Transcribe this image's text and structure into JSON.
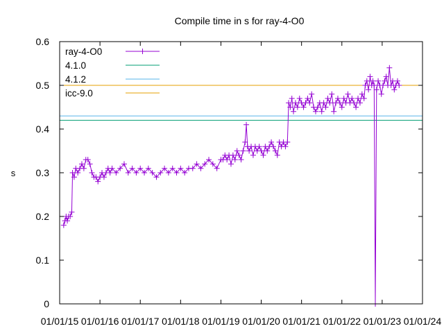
{
  "chart_data": {
    "type": "line",
    "title": "Compile time in s for ray-4-O0",
    "xlabel": "",
    "ylabel": "s",
    "x_ticks": [
      "01/01/15",
      "01/01/16",
      "01/01/17",
      "01/01/18",
      "01/01/19",
      "01/01/20",
      "01/01/21",
      "01/01/22",
      "01/01/23",
      "01/01/24"
    ],
    "y_ticks": [
      "0",
      "0.1",
      "0.2",
      "0.3",
      "0.4",
      "0.5",
      "0.6"
    ],
    "xlim_years": [
      2015.0,
      2024.0
    ],
    "ylim": [
      0,
      0.6
    ],
    "grid": false,
    "legend_position": "top-left",
    "series": [
      {
        "name": "ray-4-O0",
        "style": "linespoints",
        "color": "#9400d3",
        "points": [
          [
            2015.1,
            0.18
          ],
          [
            2015.13,
            0.19
          ],
          [
            2015.16,
            0.2
          ],
          [
            2015.19,
            0.19
          ],
          [
            2015.22,
            0.2
          ],
          [
            2015.26,
            0.2
          ],
          [
            2015.3,
            0.21
          ],
          [
            2015.32,
            0.3
          ],
          [
            2015.36,
            0.29
          ],
          [
            2015.4,
            0.31
          ],
          [
            2015.45,
            0.3
          ],
          [
            2015.5,
            0.31
          ],
          [
            2015.55,
            0.32
          ],
          [
            2015.6,
            0.31
          ],
          [
            2015.65,
            0.33
          ],
          [
            2015.7,
            0.33
          ],
          [
            2015.75,
            0.32
          ],
          [
            2015.8,
            0.3
          ],
          [
            2015.85,
            0.29
          ],
          [
            2015.9,
            0.29
          ],
          [
            2015.95,
            0.28
          ],
          [
            2016.0,
            0.29
          ],
          [
            2016.05,
            0.3
          ],
          [
            2016.1,
            0.29
          ],
          [
            2016.15,
            0.3
          ],
          [
            2016.2,
            0.31
          ],
          [
            2016.25,
            0.3
          ],
          [
            2016.3,
            0.31
          ],
          [
            2016.4,
            0.3
          ],
          [
            2016.5,
            0.31
          ],
          [
            2016.6,
            0.32
          ],
          [
            2016.7,
            0.3
          ],
          [
            2016.8,
            0.31
          ],
          [
            2016.9,
            0.3
          ],
          [
            2017.0,
            0.31
          ],
          [
            2017.1,
            0.3
          ],
          [
            2017.2,
            0.31
          ],
          [
            2017.3,
            0.3
          ],
          [
            2017.4,
            0.29
          ],
          [
            2017.5,
            0.3
          ],
          [
            2017.6,
            0.31
          ],
          [
            2017.7,
            0.3
          ],
          [
            2017.8,
            0.31
          ],
          [
            2017.9,
            0.3
          ],
          [
            2018.0,
            0.31
          ],
          [
            2018.1,
            0.3
          ],
          [
            2018.2,
            0.31
          ],
          [
            2018.3,
            0.31
          ],
          [
            2018.4,
            0.32
          ],
          [
            2018.5,
            0.31
          ],
          [
            2018.6,
            0.32
          ],
          [
            2018.7,
            0.33
          ],
          [
            2018.8,
            0.32
          ],
          [
            2018.9,
            0.31
          ],
          [
            2019.0,
            0.33
          ],
          [
            2019.05,
            0.33
          ],
          [
            2019.1,
            0.34
          ],
          [
            2019.15,
            0.33
          ],
          [
            2019.2,
            0.34
          ],
          [
            2019.25,
            0.32
          ],
          [
            2019.3,
            0.34
          ],
          [
            2019.35,
            0.33
          ],
          [
            2019.4,
            0.35
          ],
          [
            2019.45,
            0.34
          ],
          [
            2019.5,
            0.33
          ],
          [
            2019.55,
            0.35
          ],
          [
            2019.6,
            0.37
          ],
          [
            2019.63,
            0.41
          ],
          [
            2019.66,
            0.36
          ],
          [
            2019.7,
            0.35
          ],
          [
            2019.75,
            0.36
          ],
          [
            2019.8,
            0.34
          ],
          [
            2019.85,
            0.36
          ],
          [
            2019.9,
            0.35
          ],
          [
            2019.95,
            0.36
          ],
          [
            2020.0,
            0.35
          ],
          [
            2020.05,
            0.34
          ],
          [
            2020.1,
            0.36
          ],
          [
            2020.15,
            0.35
          ],
          [
            2020.2,
            0.36
          ],
          [
            2020.25,
            0.37
          ],
          [
            2020.3,
            0.36
          ],
          [
            2020.35,
            0.35
          ],
          [
            2020.4,
            0.34
          ],
          [
            2020.45,
            0.37
          ],
          [
            2020.5,
            0.36
          ],
          [
            2020.55,
            0.37
          ],
          [
            2020.6,
            0.36
          ],
          [
            2020.65,
            0.37
          ],
          [
            2020.68,
            0.46
          ],
          [
            2020.72,
            0.45
          ],
          [
            2020.76,
            0.47
          ],
          [
            2020.8,
            0.44
          ],
          [
            2020.85,
            0.46
          ],
          [
            2020.9,
            0.45
          ],
          [
            2020.95,
            0.47
          ],
          [
            2021.0,
            0.46
          ],
          [
            2021.05,
            0.45
          ],
          [
            2021.1,
            0.46
          ],
          [
            2021.15,
            0.47
          ],
          [
            2021.2,
            0.46
          ],
          [
            2021.25,
            0.48
          ],
          [
            2021.3,
            0.45
          ],
          [
            2021.35,
            0.44
          ],
          [
            2021.4,
            0.45
          ],
          [
            2021.45,
            0.46
          ],
          [
            2021.5,
            0.44
          ],
          [
            2021.55,
            0.46
          ],
          [
            2021.6,
            0.45
          ],
          [
            2021.65,
            0.47
          ],
          [
            2021.7,
            0.46
          ],
          [
            2021.75,
            0.48
          ],
          [
            2021.8,
            0.44
          ],
          [
            2021.85,
            0.46
          ],
          [
            2021.9,
            0.47
          ],
          [
            2021.95,
            0.46
          ],
          [
            2022.0,
            0.45
          ],
          [
            2022.05,
            0.47
          ],
          [
            2022.1,
            0.46
          ],
          [
            2022.15,
            0.48
          ],
          [
            2022.2,
            0.46
          ],
          [
            2022.25,
            0.47
          ],
          [
            2022.3,
            0.46
          ],
          [
            2022.35,
            0.45
          ],
          [
            2022.4,
            0.47
          ],
          [
            2022.45,
            0.46
          ],
          [
            2022.5,
            0.48
          ],
          [
            2022.55,
            0.47
          ],
          [
            2022.58,
            0.5
          ],
          [
            2022.62,
            0.51
          ],
          [
            2022.66,
            0.49
          ],
          [
            2022.7,
            0.52
          ],
          [
            2022.74,
            0.5
          ],
          [
            2022.77,
            0.51
          ],
          [
            2022.8,
            0.5
          ],
          [
            2022.83,
            0.0
          ],
          [
            2022.86,
            0.49
          ],
          [
            2022.9,
            0.51
          ],
          [
            2022.94,
            0.5
          ],
          [
            2022.98,
            0.48
          ],
          [
            2023.02,
            0.5
          ],
          [
            2023.06,
            0.51
          ],
          [
            2023.1,
            0.52
          ],
          [
            2023.14,
            0.5
          ],
          [
            2023.18,
            0.54
          ],
          [
            2023.22,
            0.5
          ],
          [
            2023.26,
            0.51
          ],
          [
            2023.3,
            0.49
          ],
          [
            2023.34,
            0.5
          ],
          [
            2023.38,
            0.51
          ],
          [
            2023.42,
            0.5
          ]
        ]
      },
      {
        "name": "4.1.0",
        "style": "hline",
        "color": "#009e73",
        "value": 0.42
      },
      {
        "name": "4.1.2",
        "style": "hline",
        "color": "#56b4e9",
        "value": 0.43
      },
      {
        "name": "icc-9.0",
        "style": "hline",
        "color": "#e69f00",
        "value": 0.5
      }
    ]
  }
}
